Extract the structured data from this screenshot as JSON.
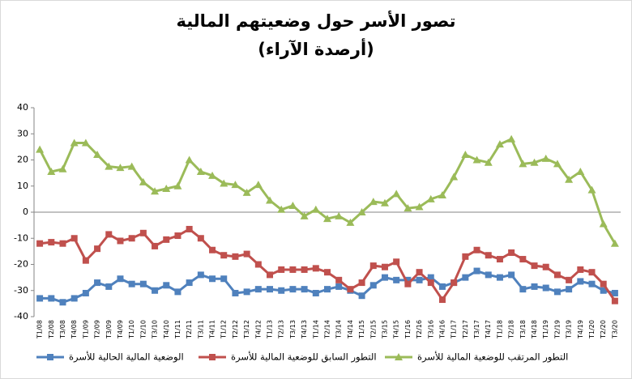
{
  "chart_data": {
    "type": "line",
    "title": "تصور الأسر حول وضعيتهم المالية",
    "subtitle": "(أرصدة الآراء)",
    "categories": [
      "T1/08",
      "T2/08",
      "T3/08",
      "T4/08",
      "T1/09",
      "T2/09",
      "T3/09",
      "T4/09",
      "T1/10",
      "T2/10",
      "T3/10",
      "T4/10",
      "T1/11",
      "T2/11",
      "T3/11",
      "T4/11",
      "T1/12",
      "T2/12",
      "T3/12",
      "T4/12",
      "T1/13",
      "T2/13",
      "T3/13",
      "T4/13",
      "T1/14",
      "T2/14",
      "T3/14",
      "T4/14",
      "T1/15",
      "T2/15",
      "T3/15",
      "T4/15",
      "T1/16",
      "T2/16",
      "T3/16",
      "T4/16",
      "T1/17",
      "T2/17",
      "T3/17",
      "T4/17",
      "T1/18",
      "T2/18",
      "T3/18",
      "T4/18",
      "T1/19",
      "T2/19",
      "T3/19",
      "T4/19",
      "T1/20",
      "T2/20",
      "T3/20"
    ],
    "series": [
      {
        "name": "الوضعية المالية الحالية للأسرة",
        "color": "#4f81bd",
        "marker": "square",
        "values": [
          -33,
          -33,
          -34.5,
          -33,
          -31,
          -27,
          -28.5,
          -25.5,
          -27.5,
          -27.5,
          -30,
          -28,
          -30.5,
          -27,
          -24,
          -25.5,
          -25.5,
          -31,
          -30.5,
          -29.5,
          -29.5,
          -30,
          -29.5,
          -29.5,
          -31,
          -29.5,
          -28.5,
          -30,
          -32,
          -28,
          -25,
          -26,
          -26,
          -26,
          -25,
          -28.5,
          -27,
          -25,
          -22.5,
          -24,
          -25,
          -24,
          -29.5,
          -28.5,
          -29,
          -30.5,
          -29.5,
          -26.5,
          -27.5,
          -30,
          -31
        ]
      },
      {
        "name": "التطور السابق للوضعية المالية للأسرة",
        "color": "#c0504d",
        "marker": "square",
        "values": [
          -12,
          -11.5,
          -12,
          -10,
          -18.5,
          -14,
          -8.5,
          -11,
          -10,
          -8,
          -13,
          -10.5,
          -9,
          -6.5,
          -10,
          -14.5,
          -16.5,
          -17,
          -16,
          -20,
          -24,
          -22,
          -22,
          -22,
          -21.5,
          -23,
          -26,
          -29.5,
          -27,
          -20.5,
          -21,
          -19,
          -27.5,
          -23,
          -27,
          -33.5,
          -27,
          -17,
          -14.5,
          -16.5,
          -18,
          -15.5,
          -18,
          -20.5,
          -21,
          -24,
          -26,
          -22,
          -23,
          -27.5,
          -34
        ]
      },
      {
        "name": "التطور المرتقب للوضعية المالية للأسرة",
        "color": "#9bbb59",
        "marker": "triangle",
        "values": [
          24,
          15.5,
          16.5,
          26.5,
          26.5,
          22,
          17.5,
          17,
          17.5,
          11.5,
          8,
          9,
          10,
          20,
          15.5,
          14,
          11,
          10.5,
          7.5,
          10.5,
          4.5,
          1,
          2.5,
          -1.5,
          1,
          -2.5,
          -1.5,
          -4,
          0,
          4,
          3.5,
          7,
          1.5,
          2,
          5,
          6.5,
          13.5,
          22,
          20,
          19,
          26,
          28,
          18.5,
          19,
          20.5,
          18.5,
          12.5,
          15.5,
          8.5,
          -4.5,
          -12
        ]
      }
    ],
    "ylim": [
      -40,
      40
    ],
    "yticks": [
      -40,
      -30,
      -20,
      -10,
      0,
      10,
      20,
      30,
      40
    ],
    "grid": false
  }
}
